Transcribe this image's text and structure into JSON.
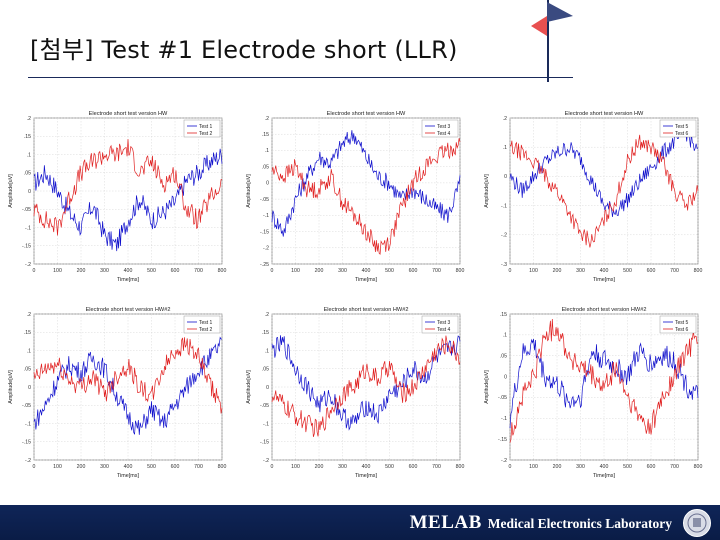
{
  "slide": {
    "title": "[첨부] Test #1 Electrode short (LLR)",
    "footer_lab_short": "MELAB",
    "footer_lab_full": "Medical Electronics Laboratory"
  },
  "colors": {
    "series_a": "#1010cc",
    "series_b": "#e02020",
    "footer": "#0f2558",
    "flag_blue": "#3a4a80",
    "flag_red": "#e85050"
  },
  "chart_data": [
    {
      "type": "line",
      "title": "Electrode short test version HW",
      "xlabel": "Time[ms]",
      "ylabel": "Amplitude[uV]",
      "xlim": [
        0,
        800
      ],
      "xticks": [
        0,
        100,
        200,
        300,
        400,
        500,
        600,
        700,
        800
      ],
      "ylim": [
        -0.2,
        0.2
      ],
      "yticks": [
        0.2,
        0.15,
        0.1,
        0.05,
        0,
        -0.05,
        -0.1,
        -0.15,
        -0.2
      ],
      "grid": true,
      "legend": "top-right",
      "x": [
        0,
        50,
        100,
        150,
        200,
        250,
        300,
        350,
        400,
        450,
        500,
        550,
        600,
        650,
        700,
        750,
        800
      ],
      "series": [
        {
          "name": "Test 1",
          "values": [
            0.02,
            0.05,
            0.0,
            -0.06,
            -0.1,
            -0.04,
            -0.12,
            -0.15,
            -0.08,
            -0.02,
            -0.08,
            -0.06,
            -0.03,
            0.03,
            0.05,
            0.08,
            0.1
          ]
        },
        {
          "name": "Test 2",
          "values": [
            -0.05,
            -0.08,
            -0.1,
            -0.02,
            0.05,
            0.08,
            0.1,
            0.1,
            0.12,
            0.05,
            0.08,
            0.02,
            0.05,
            -0.05,
            -0.08,
            -0.02,
            0.02
          ]
        }
      ]
    },
    {
      "type": "line",
      "title": "Electrode short test version HW",
      "xlabel": "Time[ms]",
      "ylabel": "Amplitude[uV]",
      "xlim": [
        0,
        800
      ],
      "xticks": [
        0,
        100,
        200,
        300,
        400,
        500,
        600,
        700,
        800
      ],
      "ylim": [
        -0.25,
        0.2
      ],
      "yticks": [
        0.2,
        0.15,
        0.1,
        0.05,
        0,
        -0.05,
        -0.1,
        -0.15,
        -0.2,
        -0.25
      ],
      "grid": true,
      "legend": "top-right",
      "x": [
        0,
        50,
        100,
        150,
        200,
        250,
        300,
        350,
        400,
        450,
        500,
        550,
        600,
        650,
        700,
        750,
        800
      ],
      "series": [
        {
          "name": "Test 3",
          "values": [
            -0.1,
            -0.15,
            -0.05,
            0.02,
            0.08,
            0.06,
            0.12,
            0.15,
            0.08,
            0.02,
            0.0,
            -0.05,
            -0.02,
            -0.05,
            -0.08,
            -0.1,
            0.0
          ]
        },
        {
          "name": "Test 4",
          "values": [
            0.04,
            0.02,
            0.05,
            -0.02,
            -0.02,
            0.02,
            -0.06,
            -0.1,
            -0.15,
            -0.2,
            -0.18,
            -0.08,
            0.0,
            0.05,
            0.08,
            0.1,
            0.12
          ]
        }
      ]
    },
    {
      "type": "line",
      "title": "Electrode short test version HW",
      "xlabel": "Time[ms]",
      "ylabel": "Amplitude[uV]",
      "xlim": [
        0,
        800
      ],
      "xticks": [
        0,
        100,
        200,
        300,
        400,
        500,
        600,
        700,
        800
      ],
      "ylim": [
        -0.3,
        0.2
      ],
      "yticks": [
        0.2,
        0.1,
        0,
        -0.1,
        -0.2,
        -0.3
      ],
      "grid": true,
      "legend": "top-right",
      "x": [
        0,
        50,
        100,
        150,
        200,
        250,
        300,
        350,
        400,
        450,
        500,
        550,
        600,
        650,
        700,
        750,
        800
      ],
      "series": [
        {
          "name": "Test 5",
          "values": [
            0.0,
            -0.05,
            0.0,
            0.05,
            0.08,
            0.1,
            0.06,
            -0.02,
            -0.1,
            -0.12,
            -0.08,
            -0.02,
            0.03,
            0.08,
            0.12,
            0.15,
            0.08
          ]
        },
        {
          "name": "Test 6",
          "values": [
            0.1,
            0.08,
            0.05,
            0.0,
            -0.05,
            -0.12,
            -0.2,
            -0.22,
            -0.15,
            -0.08,
            0.05,
            0.12,
            0.1,
            0.05,
            -0.05,
            -0.1,
            -0.05
          ]
        }
      ]
    },
    {
      "type": "line",
      "title": "Electrode short test version HW#2",
      "xlabel": "Time[ms]",
      "ylabel": "Amplitude[uV]",
      "xlim": [
        0,
        800
      ],
      "xticks": [
        0,
        100,
        200,
        300,
        400,
        500,
        600,
        700,
        800
      ],
      "ylim": [
        -0.2,
        0.2
      ],
      "yticks": [
        0.2,
        0.15,
        0.1,
        0.05,
        0,
        -0.05,
        -0.1,
        -0.15,
        -0.2
      ],
      "grid": true,
      "legend": "top-right",
      "x": [
        0,
        50,
        100,
        150,
        200,
        250,
        300,
        350,
        400,
        450,
        500,
        550,
        600,
        650,
        700,
        750,
        800
      ],
      "series": [
        {
          "name": "Test 1",
          "values": [
            -0.1,
            -0.05,
            0.02,
            0.06,
            0.04,
            0.08,
            0.05,
            -0.02,
            -0.08,
            -0.12,
            -0.06,
            -0.1,
            -0.05,
            0.0,
            0.05,
            0.08,
            0.12
          ]
        },
        {
          "name": "Test 2",
          "values": [
            0.02,
            0.05,
            0.06,
            0.02,
            0.0,
            0.03,
            -0.02,
            0.03,
            0.06,
            0.0,
            -0.03,
            0.05,
            0.1,
            0.12,
            0.08,
            0.0,
            -0.05
          ]
        }
      ]
    },
    {
      "type": "line",
      "title": "Electrode short test version HW#2",
      "xlabel": "Time[ms]",
      "ylabel": "Amplitude[uV]",
      "xlim": [
        0,
        800
      ],
      "xticks": [
        0,
        100,
        200,
        300,
        400,
        500,
        600,
        700,
        800
      ],
      "ylim": [
        -0.2,
        0.2
      ],
      "yticks": [
        0.2,
        0.15,
        0.1,
        0.05,
        0,
        -0.05,
        -0.1,
        -0.15,
        -0.2
      ],
      "grid": true,
      "legend": "top-right",
      "x": [
        0,
        50,
        100,
        150,
        200,
        250,
        300,
        350,
        400,
        450,
        500,
        550,
        600,
        650,
        700,
        750,
        800
      ],
      "series": [
        {
          "name": "Test 3",
          "values": [
            0.1,
            0.12,
            0.05,
            0.0,
            -0.05,
            -0.02,
            -0.08,
            -0.1,
            -0.05,
            -0.08,
            -0.02,
            0.0,
            0.05,
            0.02,
            0.08,
            0.1,
            0.12
          ]
        },
        {
          "name": "Test 4",
          "values": [
            -0.02,
            -0.05,
            -0.08,
            -0.1,
            -0.12,
            -0.06,
            -0.02,
            0.0,
            0.05,
            0.02,
            0.06,
            -0.02,
            0.0,
            0.05,
            0.1,
            0.12,
            0.08
          ]
        }
      ]
    },
    {
      "type": "line",
      "title": "Electrode short test version HW#2",
      "xlabel": "Time[ms]",
      "ylabel": "Amplitude[uV]",
      "xlim": [
        0,
        800
      ],
      "xticks": [
        0,
        100,
        200,
        300,
        400,
        500,
        600,
        700,
        800
      ],
      "ylim": [
        -0.2,
        0.15
      ],
      "yticks": [
        0.15,
        0.1,
        0.05,
        0,
        -0.05,
        -0.1,
        -0.15,
        -0.2
      ],
      "grid": true,
      "legend": "top-right",
      "x": [
        0,
        50,
        100,
        150,
        200,
        250,
        300,
        350,
        400,
        450,
        500,
        550,
        600,
        650,
        700,
        750,
        800
      ],
      "series": [
        {
          "name": "Test 5",
          "values": [
            -0.1,
            0.05,
            0.08,
            0.0,
            -0.02,
            -0.06,
            -0.05,
            0.06,
            0.04,
            0.02,
            0.0,
            0.06,
            0.03,
            0.05,
            0.04,
            -0.02,
            -0.05
          ]
        },
        {
          "name": "Test 6",
          "values": [
            -0.15,
            -0.05,
            0.0,
            0.1,
            0.12,
            0.05,
            0.02,
            0.0,
            -0.03,
            0.02,
            -0.05,
            -0.1,
            -0.12,
            -0.05,
            0.0,
            0.06,
            0.1
          ]
        }
      ]
    }
  ]
}
